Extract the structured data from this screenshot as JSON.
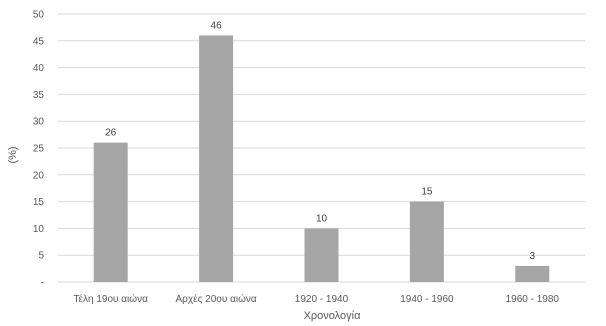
{
  "chart_data": {
    "type": "bar",
    "categories": [
      "Τέλη 19ου αιώνα",
      "Αρχές 20ου αιώνα",
      "1920 - 1940",
      "1940 - 1960",
      "1960 - 1980"
    ],
    "values": [
      26,
      46,
      10,
      15,
      3
    ],
    "data_labels": [
      "26",
      "46",
      "10",
      "15",
      "3"
    ],
    "title": "",
    "xlabel": "Χρονολογία",
    "ylabel": "(%)",
    "ylim": [
      0,
      50
    ],
    "yticks": [
      0,
      5,
      10,
      15,
      20,
      25,
      30,
      35,
      40,
      45,
      50
    ],
    "ytick_labels": [
      "-",
      "5",
      "10",
      "15",
      "20",
      "25",
      "30",
      "35",
      "40",
      "45",
      "50"
    ],
    "grid": true,
    "legend": "none",
    "bar_color": "#a6a6a6"
  }
}
